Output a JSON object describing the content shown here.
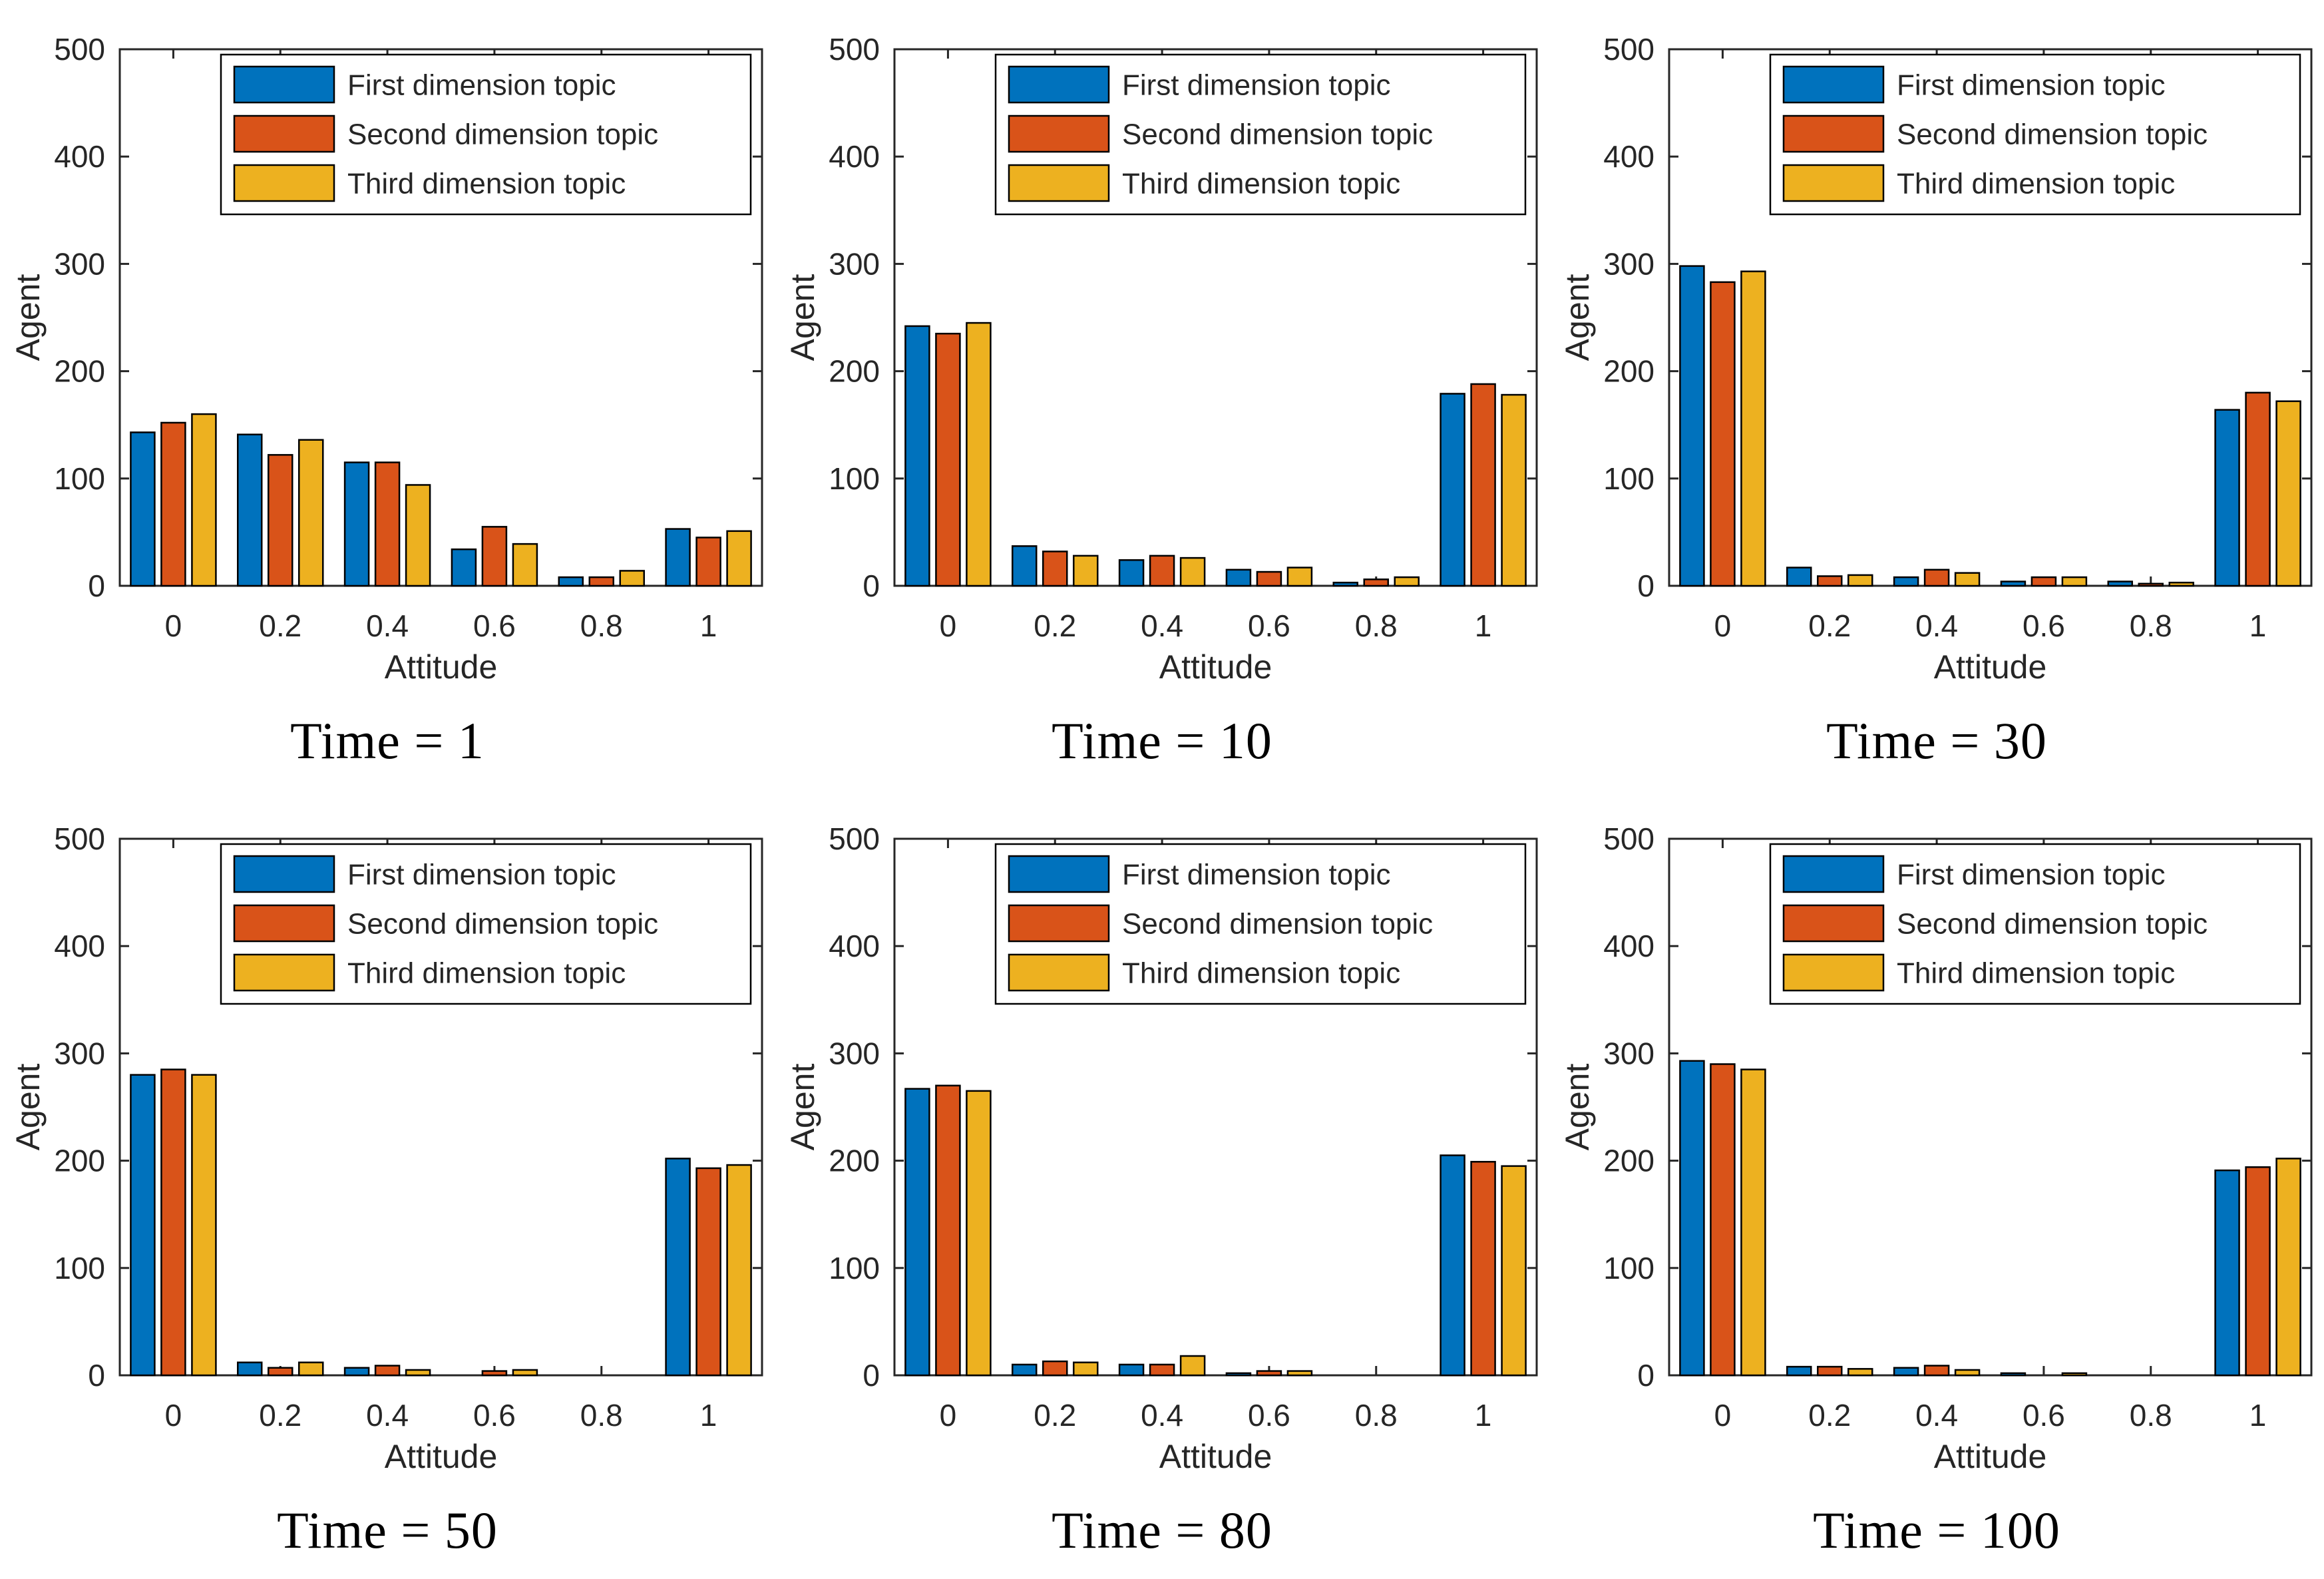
{
  "page": {
    "background": "#ffffff",
    "text_color": "#262626",
    "bar_edge_color": "#000000"
  },
  "legend": {
    "position": "top-inside",
    "items": [
      {
        "label": "First dimension topic",
        "color": "#0072BD"
      },
      {
        "label": "Second dimension topic",
        "color": "#D95319"
      },
      {
        "label": "Third dimension topic",
        "color": "#EDB120"
      }
    ]
  },
  "chart_data": [
    {
      "type": "bar",
      "title": "Time = 1",
      "xlabel": "Attitude",
      "ylabel": "Agent",
      "ylim": [
        0,
        500
      ],
      "yticks": [
        0,
        100,
        200,
        300,
        400,
        500
      ],
      "categories": [
        "0",
        "0.2",
        "0.4",
        "0.6",
        "0.8",
        "1"
      ],
      "grid": false,
      "legend_position": "top",
      "series": [
        {
          "name": "First dimension topic",
          "values": [
            143,
            141,
            115,
            34,
            8,
            53
          ]
        },
        {
          "name": "Second dimension topic",
          "values": [
            152,
            122,
            115,
            55,
            8,
            45
          ]
        },
        {
          "name": "Third dimension topic",
          "values": [
            160,
            136,
            94,
            39,
            14,
            51
          ]
        }
      ]
    },
    {
      "type": "bar",
      "title": "Time = 10",
      "xlabel": "Attitude",
      "ylabel": "Agent",
      "ylim": [
        0,
        500
      ],
      "yticks": [
        0,
        100,
        200,
        300,
        400,
        500
      ],
      "categories": [
        "0",
        "0.2",
        "0.4",
        "0.6",
        "0.8",
        "1"
      ],
      "grid": false,
      "legend_position": "top",
      "series": [
        {
          "name": "First dimension topic",
          "values": [
            242,
            37,
            24,
            15,
            3,
            179
          ]
        },
        {
          "name": "Second dimension topic",
          "values": [
            235,
            32,
            28,
            13,
            6,
            188
          ]
        },
        {
          "name": "Third dimension topic",
          "values": [
            245,
            28,
            26,
            17,
            8,
            178
          ]
        }
      ]
    },
    {
      "type": "bar",
      "title": "Time = 30",
      "xlabel": "Attitude",
      "ylabel": "Agent",
      "ylim": [
        0,
        500
      ],
      "yticks": [
        0,
        100,
        200,
        300,
        400,
        500
      ],
      "categories": [
        "0",
        "0.2",
        "0.4",
        "0.6",
        "0.8",
        "1"
      ],
      "grid": false,
      "legend_position": "top",
      "series": [
        {
          "name": "First dimension topic",
          "values": [
            298,
            17,
            8,
            4,
            4,
            164
          ]
        },
        {
          "name": "Second dimension topic",
          "values": [
            283,
            9,
            15,
            8,
            2,
            180
          ]
        },
        {
          "name": "Third dimension topic",
          "values": [
            293,
            10,
            12,
            8,
            3,
            172
          ]
        }
      ]
    },
    {
      "type": "bar",
      "title": "Time = 50",
      "xlabel": "Attitude",
      "ylabel": "Agent",
      "ylim": [
        0,
        500
      ],
      "yticks": [
        0,
        100,
        200,
        300,
        400,
        500
      ],
      "categories": [
        "0",
        "0.2",
        "0.4",
        "0.6",
        "0.8",
        "1"
      ],
      "grid": false,
      "legend_position": "top",
      "series": [
        {
          "name": "First dimension topic",
          "values": [
            280,
            12,
            7,
            0,
            0,
            202
          ]
        },
        {
          "name": "Second dimension topic",
          "values": [
            285,
            7,
            9,
            4,
            0,
            193
          ]
        },
        {
          "name": "Third dimension topic",
          "values": [
            280,
            12,
            5,
            5,
            0,
            196
          ]
        }
      ]
    },
    {
      "type": "bar",
      "title": "Time = 80",
      "xlabel": "Attitude",
      "ylabel": "Agent",
      "ylim": [
        0,
        500
      ],
      "yticks": [
        0,
        100,
        200,
        300,
        400,
        500
      ],
      "categories": [
        "0",
        "0.2",
        "0.4",
        "0.6",
        "0.8",
        "1"
      ],
      "grid": false,
      "legend_position": "top",
      "series": [
        {
          "name": "First dimension topic",
          "values": [
            267,
            10,
            10,
            2,
            0,
            205
          ]
        },
        {
          "name": "Second dimension topic",
          "values": [
            270,
            13,
            10,
            4,
            0,
            199
          ]
        },
        {
          "name": "Third dimension topic",
          "values": [
            265,
            12,
            18,
            4,
            0,
            195
          ]
        }
      ]
    },
    {
      "type": "bar",
      "title": "Time = 100",
      "xlabel": "Attitude",
      "ylabel": "Agent",
      "ylim": [
        0,
        500
      ],
      "yticks": [
        0,
        100,
        200,
        300,
        400,
        500
      ],
      "categories": [
        "0",
        "0.2",
        "0.4",
        "0.6",
        "0.8",
        "1"
      ],
      "grid": false,
      "legend_position": "top",
      "series": [
        {
          "name": "First dimension topic",
          "values": [
            293,
            8,
            7,
            2,
            0,
            191
          ]
        },
        {
          "name": "Second dimension topic",
          "values": [
            290,
            8,
            9,
            0,
            0,
            194
          ]
        },
        {
          "name": "Third dimension topic",
          "values": [
            285,
            6,
            5,
            2,
            0,
            202
          ]
        }
      ]
    }
  ]
}
